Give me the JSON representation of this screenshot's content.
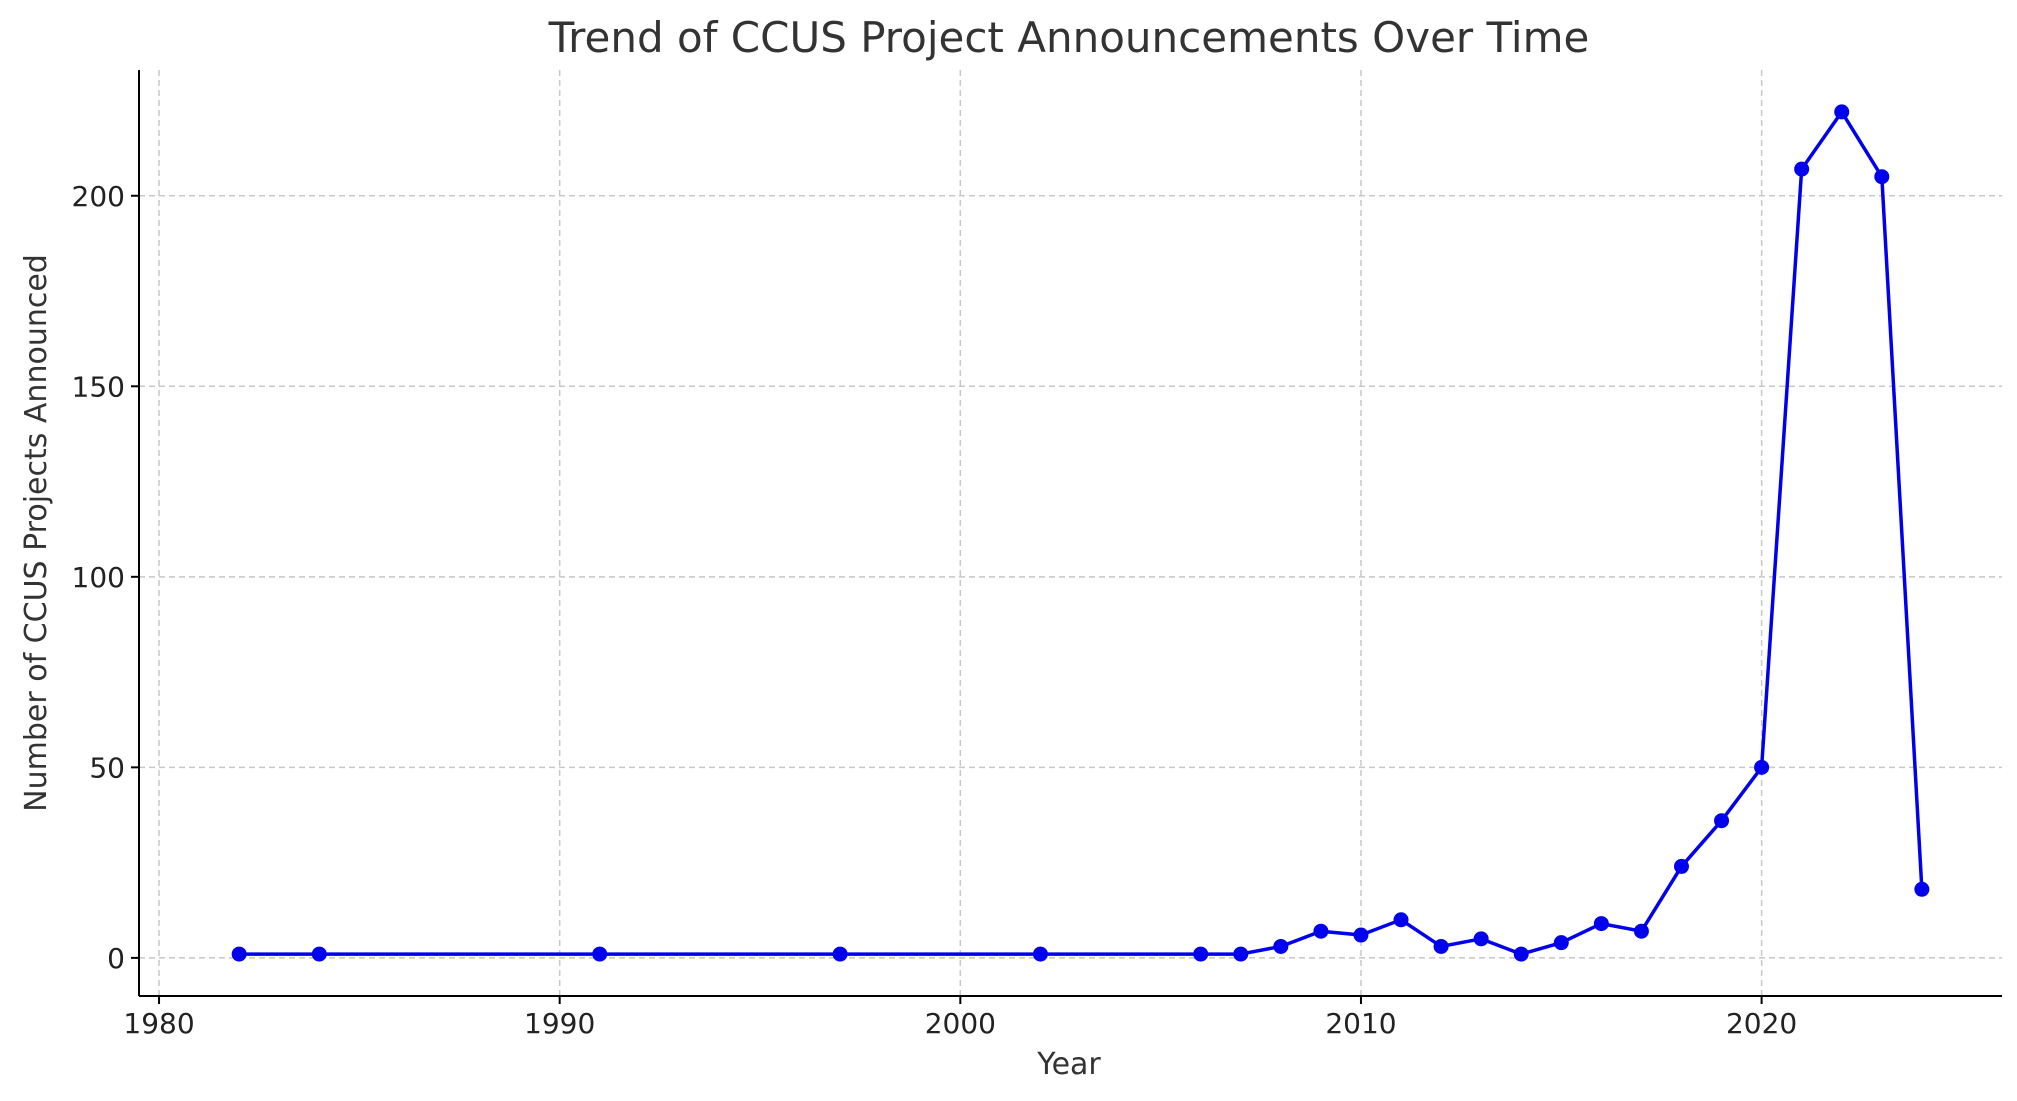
{
  "chart_data": {
    "type": "line",
    "title": "Trend of CCUS Project Announcements Over Time",
    "xlabel": "Year",
    "ylabel": "Number of CCUS Projects Announced",
    "xlim": [
      1979.5,
      2026
    ],
    "ylim": [
      -10,
      233
    ],
    "x_ticks": [
      1980,
      1990,
      2000,
      2010,
      2020
    ],
    "y_ticks": [
      0,
      50,
      100,
      150,
      200
    ],
    "grid": true,
    "legend": "none",
    "series": [
      {
        "color": "#0000ee",
        "marker": "circle",
        "x": [
          1982,
          1984,
          1991,
          1997,
          2002,
          2006,
          2007,
          2008,
          2009,
          2010,
          2011,
          2012,
          2013,
          2014,
          2015,
          2016,
          2017,
          2018,
          2019,
          2020,
          2021,
          2022,
          2023,
          2024
        ],
        "y": [
          1,
          1,
          1,
          1,
          1,
          1,
          1,
          3,
          7,
          6,
          10,
          3,
          5,
          1,
          4,
          9,
          7,
          24,
          36,
          50,
          207,
          222,
          205,
          18
        ]
      }
    ]
  }
}
